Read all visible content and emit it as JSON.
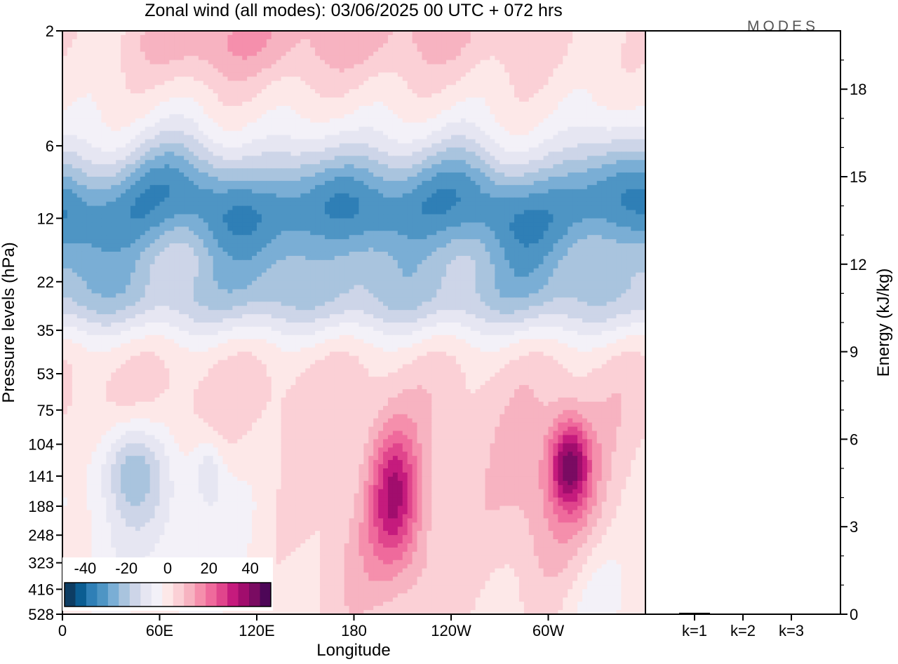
{
  "chart_data": [
    {
      "type": "heatmap",
      "title": "Zonal wind (all modes):  03/06/2025  00 UTC  + 072 hrs",
      "xlabel": "Longitude",
      "ylabel": "Pressure levels (hPa)",
      "x_ticks": [
        "0",
        "60E",
        "120E",
        "180",
        "120W",
        "60W"
      ],
      "x_tick_lon": [
        0,
        60,
        120,
        180,
        240,
        300
      ],
      "xlim": [
        0,
        360
      ],
      "y_ticks": [
        "2",
        "6",
        "12",
        "22",
        "35",
        "53",
        "75",
        "104",
        "141",
        "188",
        "248",
        "323",
        "416",
        "528"
      ],
      "y_scale": "log",
      "ylim": [
        2,
        528
      ],
      "colorbar": {
        "tick_labels": [
          "-40",
          "-20",
          "0",
          "20",
          "40"
        ],
        "range": [
          -50,
          50
        ],
        "step": 5,
        "colors": [
          "#0d3d63",
          "#0b5d92",
          "#2f7fb6",
          "#4e95c4",
          "#7aaed5",
          "#a9c4de",
          "#cdd5e8",
          "#e6e6f2",
          "#f3f1f8",
          "#fde8e8",
          "#fbd0d6",
          "#f7b3c1",
          "#f58fac",
          "#ef6a9c",
          "#e0458c",
          "#c51b7d",
          "#a10d6d",
          "#7a0b62",
          "#4d0657"
        ]
      },
      "features": [
        {
          "lon": [
            0,
            360
          ],
          "plev": [
            6,
            20
          ],
          "value": -32
        },
        {
          "lon": [
            0,
            360
          ],
          "plev": [
            20,
            35
          ],
          "value": -25
        },
        {
          "lon": [
            70,
            300
          ],
          "plev": [
            2,
            4
          ],
          "value": 12
        },
        {
          "lon": [
            35,
            55
          ],
          "plev": [
            100,
            170
          ],
          "value": -18
        },
        {
          "lon": [
            195,
            215
          ],
          "plev": [
            100,
            240
          ],
          "value": 25
        },
        {
          "lon": [
            300,
            320
          ],
          "plev": [
            95,
            150
          ],
          "value": 32
        }
      ]
    },
    {
      "type": "bar",
      "categories": [
        "k=1",
        "k=2",
        "k=3"
      ],
      "values": [
        0.05,
        0.02,
        0.02
      ],
      "ylabel": "Energy (kJ/kg)",
      "y_ticks": [
        "0",
        "3",
        "6",
        "9",
        "12",
        "15",
        "18"
      ],
      "ylim": [
        0,
        20
      ]
    }
  ],
  "logo": "MODES",
  "colors": {
    "frame": "#000000",
    "negative_max": "#0d3d63",
    "positive_max": "#4d0657",
    "neutral": "#ffffff"
  }
}
